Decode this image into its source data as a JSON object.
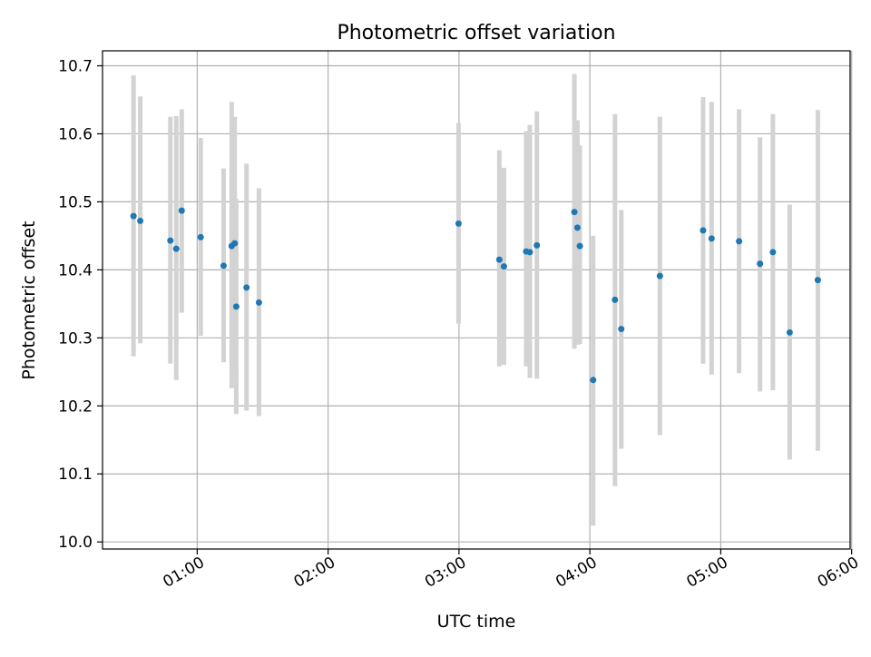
{
  "chart_data": {
    "type": "scatter",
    "title": "Photometric offset variation",
    "xlabel": "UTC time",
    "ylabel": "Photometric offset",
    "grid": true,
    "x_unit": "minutes since 00:00 UTC",
    "xlim": [
      16.6,
      359.3
    ],
    "ylim": [
      9.9896,
      10.722
    ],
    "x_ticks": [
      {
        "value": 60,
        "label": "01:00"
      },
      {
        "value": 120,
        "label": "02:00"
      },
      {
        "value": 180,
        "label": "03:00"
      },
      {
        "value": 240,
        "label": "04:00"
      },
      {
        "value": 300,
        "label": "05:00"
      },
      {
        "value": 360,
        "label": "06:00"
      }
    ],
    "y_ticks": [
      {
        "value": 10.0,
        "label": "10.0"
      },
      {
        "value": 10.1,
        "label": "10.1"
      },
      {
        "value": 10.2,
        "label": "10.2"
      },
      {
        "value": 10.3,
        "label": "10.3"
      },
      {
        "value": 10.4,
        "label": "10.4"
      },
      {
        "value": 10.5,
        "label": "10.5"
      },
      {
        "value": 10.6,
        "label": "10.6"
      },
      {
        "value": 10.7,
        "label": "10.7"
      }
    ],
    "colors": {
      "point": "#1f77b4",
      "errorbar": "#d3d3d3",
      "grid": "#b0b0b0"
    },
    "series": [
      {
        "name": "offset",
        "points": [
          {
            "x": 30.8,
            "y": 10.479,
            "low": 10.273,
            "high": 10.686
          },
          {
            "x": 33.9,
            "y": 10.472,
            "low": 10.292,
            "high": 10.655
          },
          {
            "x": 47.7,
            "y": 10.443,
            "low": 10.262,
            "high": 10.625
          },
          {
            "x": 50.4,
            "y": 10.431,
            "low": 10.238,
            "high": 10.626
          },
          {
            "x": 52.9,
            "y": 10.487,
            "low": 10.337,
            "high": 10.636
          },
          {
            "x": 61.6,
            "y": 10.448,
            "low": 10.303,
            "high": 10.594
          },
          {
            "x": 72.1,
            "y": 10.406,
            "low": 10.264,
            "high": 10.549
          },
          {
            "x": 75.8,
            "y": 10.435,
            "low": 10.226,
            "high": 10.647
          },
          {
            "x": 77.2,
            "y": 10.439,
            "low": 10.254,
            "high": 10.625
          },
          {
            "x": 77.9,
            "y": 10.346,
            "low": 10.188,
            "high": 10.504
          },
          {
            "x": 82.6,
            "y": 10.374,
            "low": 10.193,
            "high": 10.556
          },
          {
            "x": 88.3,
            "y": 10.352,
            "low": 10.185,
            "high": 10.52
          },
          {
            "x": 179.8,
            "y": 10.468,
            "low": 10.321,
            "high": 10.616
          },
          {
            "x": 198.5,
            "y": 10.415,
            "low": 10.258,
            "high": 10.576
          },
          {
            "x": 200.6,
            "y": 10.405,
            "low": 10.26,
            "high": 10.55
          },
          {
            "x": 210.8,
            "y": 10.427,
            "low": 10.258,
            "high": 10.604
          },
          {
            "x": 212.5,
            "y": 10.426,
            "low": 10.241,
            "high": 10.613
          },
          {
            "x": 215.7,
            "y": 10.436,
            "low": 10.24,
            "high": 10.633
          },
          {
            "x": 232.9,
            "y": 10.485,
            "low": 10.284,
            "high": 10.688
          },
          {
            "x": 234.3,
            "y": 10.462,
            "low": 10.29,
            "high": 10.62
          },
          {
            "x": 235.4,
            "y": 10.435,
            "low": 10.291,
            "high": 10.583
          },
          {
            "x": 241.5,
            "y": 10.238,
            "low": 10.024,
            "high": 10.45
          },
          {
            "x": 251.5,
            "y": 10.356,
            "low": 10.082,
            "high": 10.629
          },
          {
            "x": 254.4,
            "y": 10.313,
            "low": 10.137,
            "high": 10.488
          },
          {
            "x": 272.1,
            "y": 10.391,
            "low": 10.157,
            "high": 10.625
          },
          {
            "x": 291.9,
            "y": 10.458,
            "low": 10.262,
            "high": 10.654
          },
          {
            "x": 295.8,
            "y": 10.446,
            "low": 10.246,
            "high": 10.647
          },
          {
            "x": 308.4,
            "y": 10.442,
            "low": 10.248,
            "high": 10.636
          },
          {
            "x": 318.0,
            "y": 10.409,
            "low": 10.221,
            "high": 10.595
          },
          {
            "x": 323.9,
            "y": 10.426,
            "low": 10.223,
            "high": 10.629
          },
          {
            "x": 331.6,
            "y": 10.308,
            "low": 10.121,
            "high": 10.496
          },
          {
            "x": 344.5,
            "y": 10.385,
            "low": 10.134,
            "high": 10.635
          }
        ]
      }
    ]
  }
}
